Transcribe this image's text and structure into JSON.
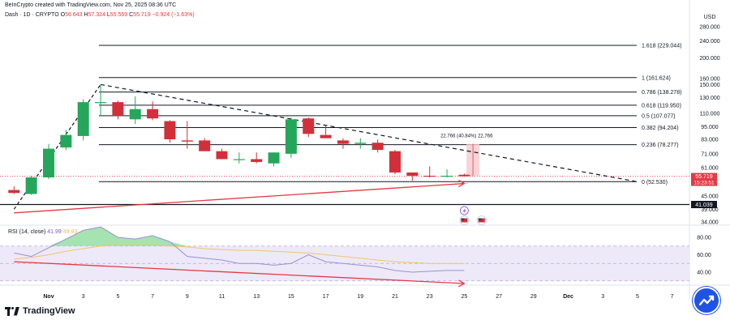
{
  "header": {
    "created_by": "BeInCrypto created with TradingView.com, Nov 25, 2025 08:36 UTC",
    "symbol": "Dash · 1D · CRYPTO",
    "ohlc": [
      {
        "k": "O",
        "v": "56.643"
      },
      {
        "k": "H",
        "v": "57.324"
      },
      {
        "k": "L",
        "v": "55.559"
      },
      {
        "k": "C",
        "v": "55.719"
      },
      {
        "k": "",
        "v": "−0.924 (−1.63%)"
      }
    ]
  },
  "currency": "USD",
  "colors": {
    "up": "#26a65b",
    "down": "#d32f3a",
    "fib_line": "#131722",
    "trend_dash": "#131722",
    "price_arrow": "#e53945",
    "rsi_line": "#9c8fd0",
    "rsi_ma": "#f2c46b",
    "rsi_band": "#ede9f8",
    "price_tag": "#e53945"
  },
  "chart_data": {
    "type": "candlestick",
    "y_scale": "log",
    "y_ticks": [
      "280.000",
      "240.000",
      "200.000",
      "160.000",
      "150.000",
      "130.000",
      "110.000",
      "95.000",
      "83.000",
      "71.000",
      "61.000",
      "45.000",
      "39.000",
      "34.000"
    ],
    "y_tick_values": [
      280,
      240,
      200,
      160,
      150,
      130,
      110,
      95,
      83,
      71,
      61,
      45,
      39,
      34
    ],
    "x_ticks": [
      {
        "label": "Nov",
        "day": 1
      },
      {
        "label": "3",
        "day": 3
      },
      {
        "label": "5",
        "day": 5
      },
      {
        "label": "7",
        "day": 7
      },
      {
        "label": "9",
        "day": 9
      },
      {
        "label": "11",
        "day": 11
      },
      {
        "label": "13",
        "day": 13
      },
      {
        "label": "15",
        "day": 15
      },
      {
        "label": "17",
        "day": 17
      },
      {
        "label": "19",
        "day": 19
      },
      {
        "label": "21",
        "day": 21
      },
      {
        "label": "23",
        "day": 23
      },
      {
        "label": "25",
        "day": 25
      },
      {
        "label": "27",
        "day": 27
      },
      {
        "label": "29",
        "day": 29
      },
      {
        "label": "Dec",
        "day": 31
      },
      {
        "label": "3",
        "day": 33
      },
      {
        "label": "5",
        "day": 35
      },
      {
        "label": "7",
        "day": 37
      }
    ],
    "candles": [
      {
        "day": -1,
        "o": 48,
        "h": 50,
        "l": 46,
        "c": 46.5
      },
      {
        "day": 0,
        "o": 46,
        "h": 56,
        "l": 45.5,
        "c": 55
      },
      {
        "day": 1,
        "o": 55,
        "h": 79,
        "l": 54,
        "c": 75
      },
      {
        "day": 2,
        "o": 76,
        "h": 92,
        "l": 74,
        "c": 87
      },
      {
        "day": 3,
        "o": 86,
        "h": 128,
        "l": 82,
        "c": 124
      },
      {
        "day": 4,
        "o": 124,
        "h": 150,
        "l": 107,
        "c": 124
      },
      {
        "day": 5,
        "o": 124,
        "h": 126,
        "l": 103,
        "c": 107
      },
      {
        "day": 6,
        "o": 103,
        "h": 132,
        "l": 98,
        "c": 115
      },
      {
        "day": 7,
        "o": 115,
        "h": 125,
        "l": 102,
        "c": 104
      },
      {
        "day": 8,
        "o": 101,
        "h": 102,
        "l": 80,
        "c": 83
      },
      {
        "day": 9,
        "o": 82,
        "h": 101,
        "l": 75,
        "c": 81
      },
      {
        "day": 10,
        "o": 82,
        "h": 84,
        "l": 74,
        "c": 73
      },
      {
        "day": 11,
        "o": 73,
        "h": 75,
        "l": 67,
        "c": 67
      },
      {
        "day": 12,
        "o": 67,
        "h": 72,
        "l": 64,
        "c": 67
      },
      {
        "day": 13,
        "o": 67,
        "h": 72,
        "l": 64,
        "c": 65
      },
      {
        "day": 14,
        "o": 64,
        "h": 72,
        "l": 62,
        "c": 72
      },
      {
        "day": 15,
        "o": 71,
        "h": 105,
        "l": 68,
        "c": 103
      },
      {
        "day": 16,
        "o": 104,
        "h": 105,
        "l": 85,
        "c": 88
      },
      {
        "day": 17,
        "o": 87,
        "h": 96,
        "l": 84,
        "c": 84
      },
      {
        "day": 18,
        "o": 82,
        "h": 84,
        "l": 75,
        "c": 79
      },
      {
        "day": 19,
        "o": 79,
        "h": 84,
        "l": 75,
        "c": 80
      },
      {
        "day": 20,
        "o": 80,
        "h": 83,
        "l": 72,
        "c": 74
      },
      {
        "day": 21,
        "o": 73,
        "h": 74,
        "l": 57,
        "c": 58
      },
      {
        "day": 22,
        "o": 58,
        "h": 58,
        "l": 53,
        "c": 56
      },
      {
        "day": 23,
        "o": 56,
        "h": 62,
        "l": 55,
        "c": 55.5
      },
      {
        "day": 24,
        "o": 56,
        "h": 60,
        "l": 55,
        "c": 56
      },
      {
        "day": 25,
        "o": 56.6,
        "h": 57.3,
        "l": 55.6,
        "c": 55.7
      }
    ],
    "fib_levels": [
      {
        "label": "1.618 (229.044)",
        "value": 229.044
      },
      {
        "label": "1 (161.624)",
        "value": 161.624
      },
      {
        "label": "0.786 (138.278)",
        "value": 138.278
      },
      {
        "label": "0.618 (119.950)",
        "value": 119.95
      },
      {
        "label": "0.5 (107.077)",
        "value": 107.077
      },
      {
        "label": "0.382 (94.204)",
        "value": 94.204
      },
      {
        "label": "0.236 (78.277)",
        "value": 78.277
      },
      {
        "label": "0 (52.530)",
        "value": 52.53
      }
    ],
    "support": {
      "label": "41.039",
      "value": 41.039
    },
    "last_price": {
      "label": "55.719",
      "countdown": "15:23:51",
      "value": 55.719
    },
    "trendline": {
      "from": {
        "day": 4,
        "value": 150
      },
      "to": {
        "day": 35,
        "value": 52.5
      }
    },
    "rising_support": {
      "from": {
        "day": -1,
        "value": 39
      },
      "to": {
        "day": 0.3,
        "value": 46
      }
    },
    "price_divergence_arrow": {
      "from": {
        "day": -1,
        "value": 37.5
      },
      "to": {
        "day": 25,
        "value": 51.5
      }
    },
    "measure": {
      "label": "22.766 (40.84%) 22,766",
      "day": 25.5,
      "low": 56,
      "high": 79
    },
    "event_icons": [
      {
        "day": 25,
        "kind": "flash"
      },
      {
        "day": 25,
        "kind": "flag-us"
      },
      {
        "day": 26,
        "kind": "flag-us"
      }
    ],
    "rsi": {
      "label": "RSI (14, close)",
      "value": "41.99",
      "ma_value": "49.93",
      "y_ticks": [
        "80.00",
        "60.00",
        "40.00"
      ],
      "y_tick_values": [
        80,
        60,
        40
      ],
      "band": [
        30,
        70
      ],
      "values": [
        62,
        58,
        68,
        78,
        88,
        92,
        80,
        78,
        82,
        75,
        58,
        56,
        54,
        50,
        50,
        48,
        50,
        60,
        52,
        50,
        48,
        46,
        42,
        40,
        41,
        42,
        42
      ],
      "ma": [
        55,
        57,
        60,
        64,
        67,
        70,
        71,
        71,
        71,
        70,
        69,
        67,
        66,
        65,
        65,
        64,
        63,
        62,
        60,
        58,
        56,
        54,
        52,
        51,
        50,
        50,
        50
      ],
      "divergence_arrow": {
        "from": {
          "day": -1,
          "value": 52
        },
        "to": {
          "day": 25,
          "value": 27
        }
      }
    }
  },
  "footer": {
    "brand": "TradingView"
  }
}
